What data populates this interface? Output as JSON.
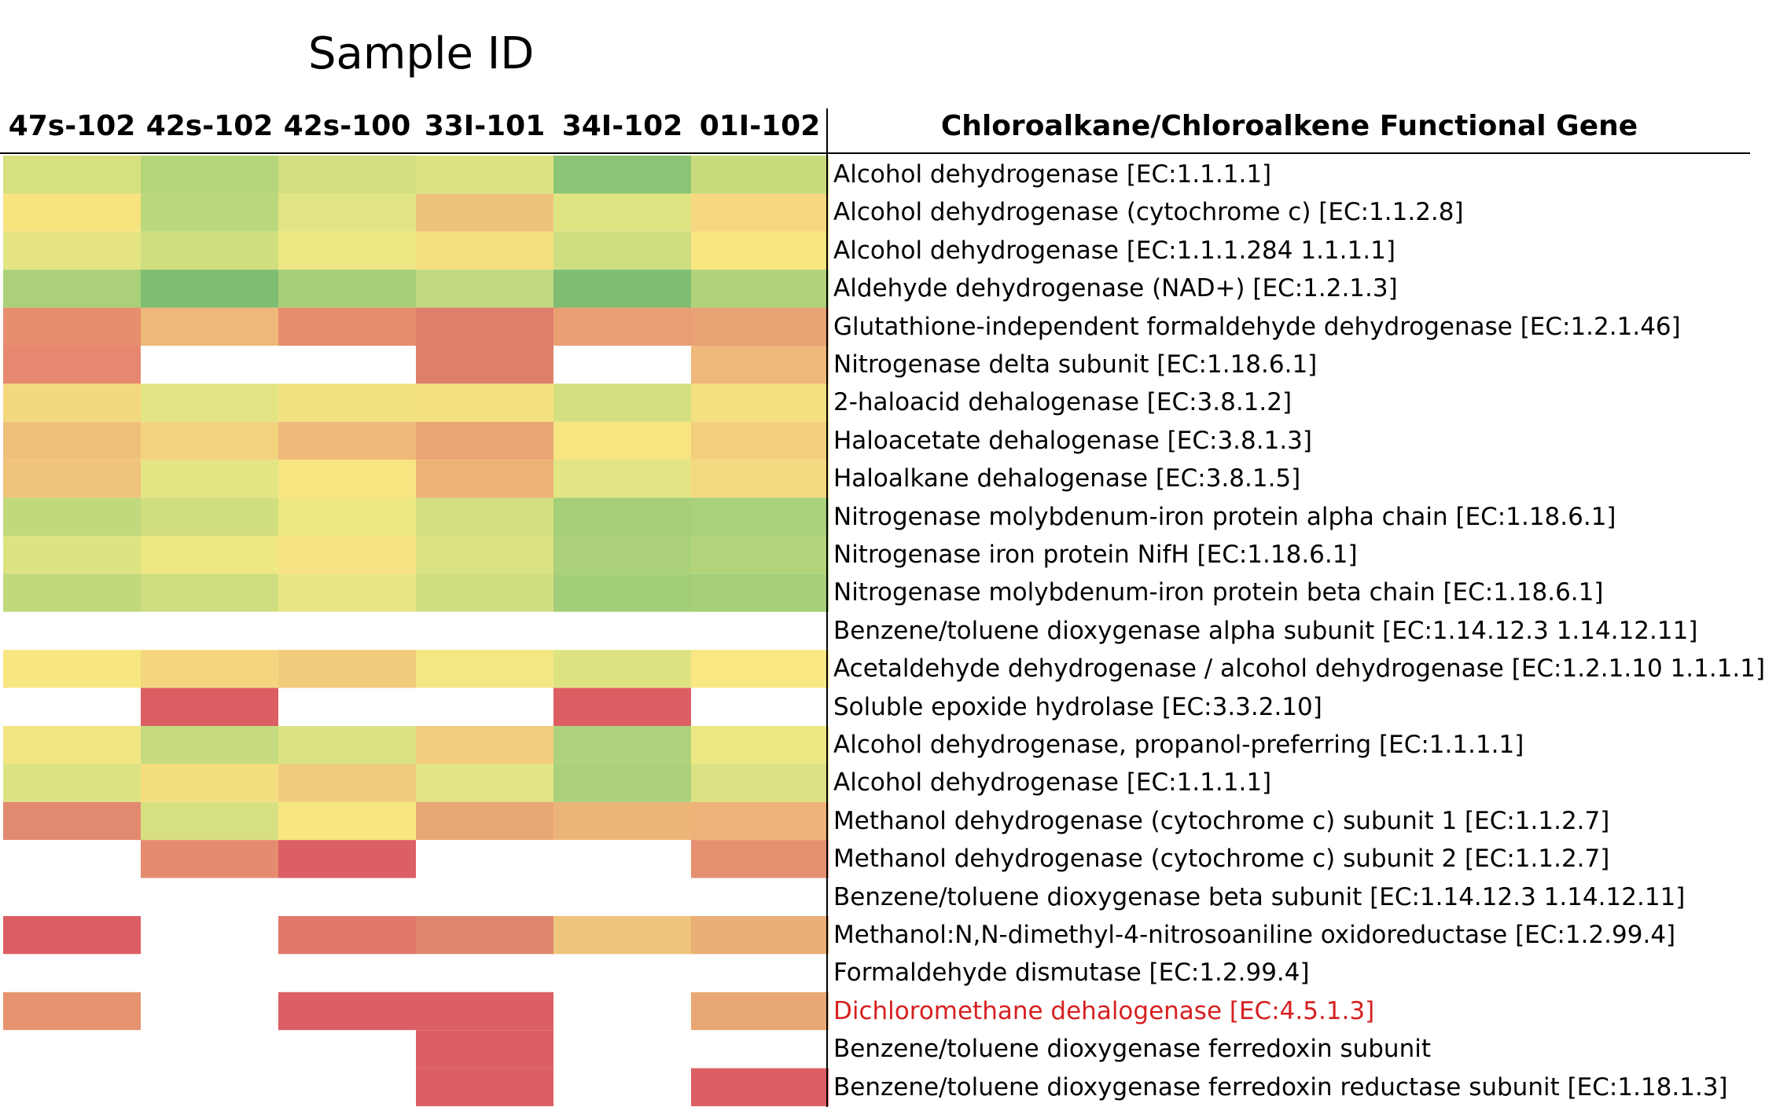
{
  "chart_data": {
    "type": "heatmap",
    "title": "Sample ID",
    "columns": [
      "47s-102",
      "42s-102",
      "42s-100",
      "33I-101",
      "34I-102",
      "01I-102"
    ],
    "row_header": "Chloroalkane/Chloroalkene Functional Gene",
    "rows": [
      "Alcohol dehydrogenase [EC:1.1.1.1]",
      "Alcohol dehydrogenase (cytochrome c) [EC:1.1.2.8]",
      "Alcohol dehydrogenase [EC:1.1.1.284 1.1.1.1]",
      "Aldehyde dehydrogenase (NAD+) [EC:1.2.1.3]",
      "Glutathione-independent formaldehyde dehydrogenase [EC:1.2.1.46]",
      "Nitrogenase delta subunit [EC:1.18.6.1]",
      "2-haloacid dehalogenase [EC:3.8.1.2]",
      "Haloacetate dehalogenase [EC:3.8.1.3]",
      "Haloalkane dehalogenase [EC:3.8.1.5]",
      "Nitrogenase molybdenum-iron protein alpha chain [EC:1.18.6.1]",
      "Nitrogenase iron protein NifH [EC:1.18.6.1]",
      "Nitrogenase molybdenum-iron protein beta chain [EC:1.18.6.1]",
      "Benzene/toluene dioxygenase alpha subunit [EC:1.14.12.3 1.14.12.11]",
      "Acetaldehyde dehydrogenase / alcohol dehydrogenase [EC:1.2.1.10 1.1.1.1]",
      "Soluble epoxide hydrolase [EC:3.3.2.10]",
      "Alcohol dehydrogenase, propanol-preferring [EC:1.1.1.1]",
      "Alcohol dehydrogenase [EC:1.1.1.1]",
      "Methanol dehydrogenase (cytochrome c) subunit 1 [EC:1.1.2.7]",
      "Methanol dehydrogenase (cytochrome c) subunit 2 [EC:1.1.2.7]",
      "Benzene/toluene dioxygenase beta subunit [EC:1.14.12.3 1.14.12.11]",
      "Methanol:N,N-dimethyl-4-nitrosoaniline oxidoreductase [EC:1.2.99.4]",
      "Formaldehyde dismutase [EC:1.2.99.4]",
      "Dichloromethane dehalogenase [EC:4.5.1.3]",
      "Benzene/toluene dioxygenase ferredoxin subunit",
      "Benzene/toluene dioxygenase ferredoxin reductase subunit [EC:1.18.1.3]"
    ],
    "highlighted_row": "Dichloromethane dehalogenase [EC:4.5.1.3]",
    "highlight_color": "#d62020",
    "color_scale": {
      "low": "#dc5f63",
      "mid": "#f5e784",
      "high": "#72b86e",
      "missing": "#ffffff"
    },
    "cells": [
      [
        "#d7e07f",
        "#b5d57b",
        "#d3df80",
        "#dce381",
        "#8cc476",
        "#c8dc7d"
      ],
      [
        "#f7e47f",
        "#bcd87d",
        "#e2e583",
        "#efc27c",
        "#dfe483",
        "#f5d87f"
      ],
      [
        "#e4e582",
        "#d1de80",
        "#ede784",
        "#f5df80",
        "#cdde81",
        "#f8e680"
      ],
      [
        "#aad17a",
        "#7fbd70",
        "#a8d07a",
        "#c3d97f",
        "#7fbd72",
        "#b0d27b"
      ],
      [
        "#e78e6f",
        "#eeb879",
        "#e88c6e",
        "#e07f6b",
        "#e89f73",
        "#e8a273"
      ],
      [
        "#e5886f",
        null,
        null,
        "#de7f6a",
        null,
        "#edb879"
      ],
      [
        "#f4d87e",
        "#e2e583",
        "#f2e282",
        "#f5e081",
        "#d3df80",
        "#f5e081"
      ],
      [
        "#efbf7c",
        "#f4d37e",
        "#eeb97a",
        "#eaa775",
        "#f7e581",
        "#f3cf7d"
      ],
      [
        "#f0c37c",
        "#e4e583",
        "#f8e582",
        "#ecb377",
        "#e2e583",
        "#f3da80"
      ],
      [
        "#c1d97d",
        "#d1de80",
        "#ede784",
        "#d3df80",
        "#a5cf79",
        "#a9d07a"
      ],
      [
        "#dee382",
        "#ede784",
        "#f5e282",
        "#dbe281",
        "#aad17a",
        "#b4d47b"
      ],
      [
        "#c1d97d",
        "#cfdd80",
        "#e8e684",
        "#d1de80",
        "#a3ce79",
        "#a5cf79"
      ],
      [
        null,
        null,
        null,
        null,
        null,
        null
      ],
      [
        "#f8e780",
        "#f4d67f",
        "#f0cb7c",
        "#f2e783",
        "#dee382",
        "#f8e782"
      ],
      [
        null,
        "#dc5e63",
        null,
        null,
        "#dc5e63",
        null
      ],
      [
        "#f2e682",
        "#c6db7f",
        "#dbe281",
        "#f1cd7d",
        "#aed27b",
        "#ece783"
      ],
      [
        "#dce383",
        "#f5de80",
        "#f1cb7d",
        "#e2e583",
        "#aad17a",
        "#d9e182"
      ],
      [
        "#e18a70",
        "#d7e081",
        "#f8e781",
        "#e9a775",
        "#ecb578",
        "#ecb278"
      ],
      [
        null,
        "#e58c6f",
        "#dc5f63",
        null,
        null,
        "#e6906f"
      ],
      [
        null,
        null,
        null,
        null,
        null,
        null
      ],
      [
        "#dc5e63",
        null,
        "#e2786b",
        "#e0856d",
        "#eec57c",
        "#eaaf77"
      ],
      [
        null,
        null,
        null,
        null,
        null,
        null
      ],
      [
        "#e6946f",
        null,
        "#dc5f63",
        "#dc5f63",
        null,
        "#e9a775"
      ],
      [
        null,
        null,
        null,
        "#dc5f63",
        null,
        null
      ],
      [
        null,
        null,
        null,
        "#dc5f63",
        null,
        "#dc5f63"
      ]
    ]
  }
}
